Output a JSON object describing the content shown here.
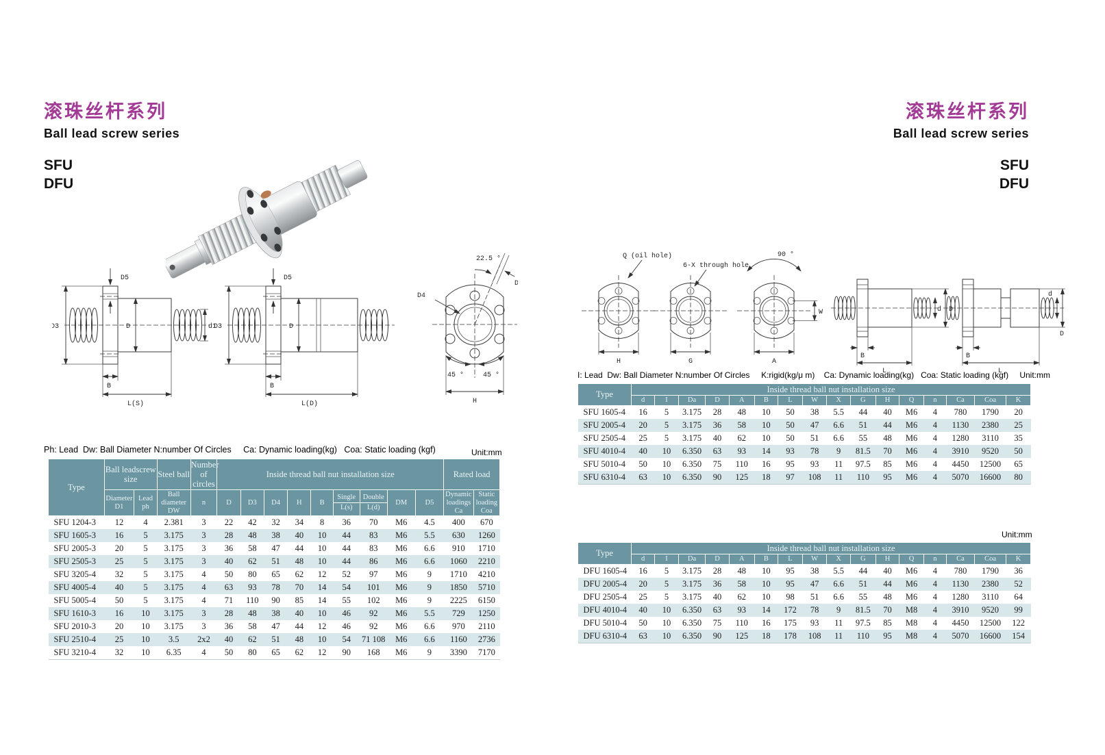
{
  "titles": {
    "zh": "滚珠丝杆系列",
    "en": "Ball lead screw  series",
    "model_1": "SFU",
    "model_2": "DFU"
  },
  "colors": {
    "accent": "#a23a96",
    "table_header": "#6b95a1",
    "row_alt": "#d8e7ea"
  },
  "left": {
    "note": "Ph: Lead  Dw: Ball Diameter N:number Of Circles     Ca: Dynamic loading(kg)   Coa: Static loading (kgf)",
    "unit": "Unit:mm",
    "table": {
      "h_type": "Type",
      "h_size": "Ball leadscrew size",
      "h_steel": "Steel ball",
      "h_circles": "Number of circles",
      "h_inside": "Inside thread ball nut installation size",
      "h_rated": "Rated  load",
      "sub_headers": [
        "Diameter D1",
        "Lead ph",
        "Ball diameter DW",
        "n",
        "D",
        "D3",
        "D4",
        "H",
        "B",
        "Single\nL(s)",
        "Double\nL(d)",
        "DM",
        "D5",
        "Dynamic loadings Ca",
        "Static loading Coa"
      ],
      "rows": [
        [
          "SFU 1204-3",
          "12",
          "4",
          "2.381",
          "3",
          "22",
          "42",
          "32",
          "34",
          "8",
          "36",
          "70",
          "M6",
          "4.5",
          "400",
          "670"
        ],
        [
          "SFU 1605-3",
          "16",
          "5",
          "3.175",
          "3",
          "28",
          "48",
          "38",
          "40",
          "10",
          "44",
          "83",
          "M6",
          "5.5",
          "630",
          "1260"
        ],
        [
          "SFU 2005-3",
          "20",
          "5",
          "3.175",
          "3",
          "36",
          "58",
          "47",
          "44",
          "10",
          "44",
          "83",
          "M6",
          "6.6",
          "910",
          "1710"
        ],
        [
          "SFU 2505-3",
          "25",
          "5",
          "3.175",
          "3",
          "40",
          "62",
          "51",
          "48",
          "10",
          "44",
          "86",
          "M6",
          "6.6",
          "1060",
          "2210"
        ],
        [
          "SFU 3205-4",
          "32",
          "5",
          "3.175",
          "4",
          "50",
          "80",
          "65",
          "62",
          "12",
          "52",
          "97",
          "M6",
          "9",
          "1710",
          "4210"
        ],
        [
          "SFU 4005-4",
          "40",
          "5",
          "3.175",
          "4",
          "63",
          "93",
          "78",
          "70",
          "14",
          "54",
          "101",
          "M6",
          "9",
          "1850",
          "5710"
        ],
        [
          "SFU 5005-4",
          "50",
          "5",
          "3.175",
          "4",
          "71",
          "110",
          "90",
          "85",
          "14",
          "55",
          "102",
          "M6",
          "9",
          "2225",
          "6150"
        ],
        [
          "SFU 1610-3",
          "16",
          "10",
          "3.175",
          "3",
          "28",
          "48",
          "38",
          "40",
          "10",
          "46",
          "92",
          "M6",
          "5.5",
          "729",
          "1250"
        ],
        [
          "SFU 2010-3",
          "20",
          "10",
          "3.175",
          "3",
          "36",
          "58",
          "47",
          "44",
          "12",
          "46",
          "92",
          "M6",
          "6.6",
          "970",
          "2110"
        ],
        [
          "SFU 2510-4",
          "25",
          "10",
          "3.5",
          "2x2",
          "40",
          "62",
          "51",
          "48",
          "10",
          "54",
          "71 108",
          "M6",
          "6.6",
          "1160",
          "2736"
        ],
        [
          "SFU 3210-4",
          "32",
          "10",
          "6.35",
          "4",
          "50",
          "80",
          "65",
          "62",
          "12",
          "90",
          "168",
          "M6",
          "9",
          "3390",
          "7170"
        ]
      ]
    }
  },
  "right": {
    "note": "I: Lead  Dw: Ball Diameter N:number Of Circles     K:rigid(kg/μ m)    Ca: Dynamic loading(kg)   Coa: Static loading (kgf)",
    "unit": "Unit:mm",
    "h_type": "Type",
    "h_inside": "Inside thread ball nut installation size",
    "sub_headers": [
      "d",
      "I",
      "Da",
      "D",
      "A",
      "B",
      "L",
      "W",
      "X",
      "G",
      "H",
      "Q",
      "n",
      "Ca",
      "Coa",
      "K"
    ],
    "sfu_rows": [
      [
        "SFU 1605-4",
        "16",
        "5",
        "3.175",
        "28",
        "48",
        "10",
        "50",
        "38",
        "5.5",
        "44",
        "40",
        "M6",
        "4",
        "780",
        "1790",
        "20"
      ],
      [
        "SFU 2005-4",
        "20",
        "5",
        "3.175",
        "36",
        "58",
        "10",
        "50",
        "47",
        "6.6",
        "51",
        "44",
        "M6",
        "4",
        "1130",
        "2380",
        "25"
      ],
      [
        "SFU 2505-4",
        "25",
        "5",
        "3.175",
        "40",
        "62",
        "10",
        "50",
        "51",
        "6.6",
        "55",
        "48",
        "M6",
        "4",
        "1280",
        "3110",
        "35"
      ],
      [
        "SFU 4010-4",
        "40",
        "10",
        "6.350",
        "63",
        "93",
        "14",
        "93",
        "78",
        "9",
        "81.5",
        "70",
        "M6",
        "4",
        "3910",
        "9520",
        "50"
      ],
      [
        "SFU 5010-4",
        "50",
        "10",
        "6.350",
        "75",
        "110",
        "16",
        "95",
        "93",
        "11",
        "97.5",
        "85",
        "M6",
        "4",
        "4450",
        "12500",
        "65"
      ],
      [
        "SFU 6310-4",
        "63",
        "10",
        "6.350",
        "90",
        "125",
        "18",
        "97",
        "108",
        "11",
        "110",
        "95",
        "M6",
        "4",
        "5070",
        "16600",
        "80"
      ]
    ],
    "dfu_rows": [
      [
        "DFU 1605-4",
        "16",
        "5",
        "3.175",
        "28",
        "48",
        "10",
        "95",
        "38",
        "5.5",
        "44",
        "40",
        "M6",
        "4",
        "780",
        "1790",
        "36"
      ],
      [
        "DFU 2005-4",
        "20",
        "5",
        "3.175",
        "36",
        "58",
        "10",
        "95",
        "47",
        "6.6",
        "51",
        "44",
        "M6",
        "4",
        "1130",
        "2380",
        "52"
      ],
      [
        "DFU 2505-4",
        "25",
        "5",
        "3.175",
        "40",
        "62",
        "10",
        "98",
        "51",
        "6.6",
        "55",
        "48",
        "M6",
        "4",
        "1280",
        "3110",
        "64"
      ],
      [
        "DFU 4010-4",
        "40",
        "10",
        "6.350",
        "63",
        "93",
        "14",
        "172",
        "78",
        "9",
        "81.5",
        "70",
        "M8",
        "4",
        "3910",
        "9520",
        "99"
      ],
      [
        "DFU 5010-4",
        "50",
        "10",
        "6.350",
        "75",
        "110",
        "16",
        "175",
        "93",
        "11",
        "97.5",
        "85",
        "M8",
        "4",
        "4450",
        "12500",
        "122"
      ],
      [
        "DFU 6310-4",
        "63",
        "10",
        "6.350",
        "90",
        "125",
        "18",
        "178",
        "108",
        "11",
        "110",
        "95",
        "M8",
        "4",
        "5070",
        "16600",
        "154"
      ]
    ]
  },
  "diagram": {
    "d3": "D3",
    "d5": "D5",
    "d_cap": "D",
    "d1": "d1",
    "b": "B",
    "ls": "L(S)",
    "ld": "L(D)",
    "a225": "22.5 °",
    "dm": "DM",
    "d4": "D4",
    "a45": "45 °",
    "h": "H",
    "q": "Q (oil hole)",
    "xhole": "6-X through hole",
    "a90": "90 °",
    "w": "W",
    "g": "G",
    "a": "A",
    "l": "L",
    "d_small": "d"
  }
}
